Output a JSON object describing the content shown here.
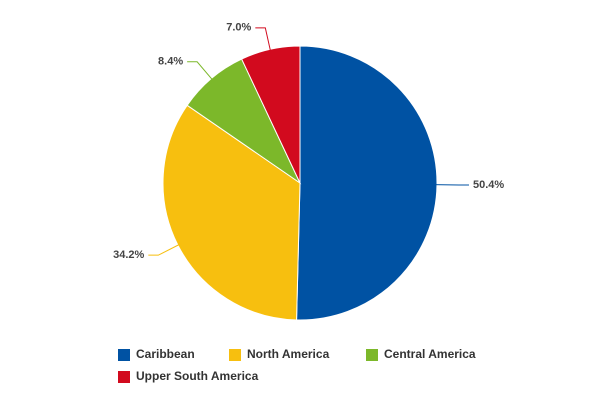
{
  "chart_data": {
    "type": "pie",
    "categories": [
      "Caribbean",
      "North America",
      "Central America",
      "Upper South America"
    ],
    "values": [
      50.4,
      34.2,
      8.4,
      7.0
    ],
    "value_labels": [
      "50.4%",
      "34.2%",
      "8.4%",
      "7.0%"
    ],
    "colors": [
      "#0052a3",
      "#f7bf0f",
      "#7cb82a",
      "#d20a1e"
    ],
    "legend": "bottom"
  }
}
